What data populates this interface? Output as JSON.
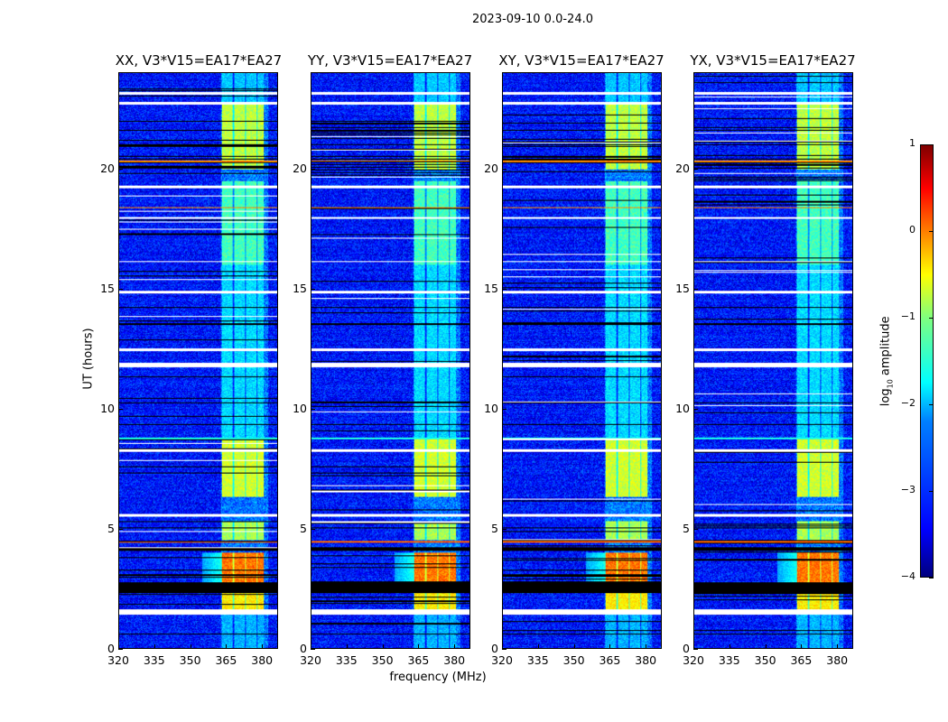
{
  "chart_data": {
    "type": "heatmap",
    "title": "2023-09-10 0.0-24.0",
    "xlabel": "frequency (MHz)",
    "ylabel": "UT (hours)",
    "xlim": [
      320,
      386.7
    ],
    "ylim": [
      0,
      24
    ],
    "xticks": [
      "320",
      "335",
      "350",
      "365",
      "380"
    ],
    "xtick_values": [
      320,
      335,
      350,
      365,
      380
    ],
    "yticks": [
      "0",
      "5",
      "10",
      "15",
      "20"
    ],
    "ytick_values": [
      0,
      5,
      10,
      15,
      20
    ],
    "panels": [
      {
        "title": "XX, V3*V15=EA17*EA27",
        "seed": 1
      },
      {
        "title": "YY, V3*V15=EA17*EA27",
        "seed": 2
      },
      {
        "title": "XY, V3*V15=EA17*EA27",
        "seed": 3
      },
      {
        "title": "YX, V3*V15=EA17*EA27",
        "seed": 4
      }
    ],
    "colorbar": {
      "label_prefix": "log",
      "label_sub": "10",
      "label_suffix": " amplitude",
      "clim": [
        -4,
        1
      ],
      "ticks": [
        "1",
        "0",
        "−1",
        "−2",
        "−3",
        "−4"
      ],
      "tick_values": [
        1,
        0,
        -1,
        -2,
        -3,
        -4
      ],
      "colormap": "jet"
    },
    "background_level": -3.3,
    "rfi_band_mhz": [
      [
        363.5,
        368
      ],
      [
        368.5,
        373
      ],
      [
        373.5,
        378
      ],
      [
        378.5,
        381
      ]
    ],
    "rfi_levels": [
      {
        "ut": [
          0,
          1.4
        ],
        "level": -2.5
      },
      {
        "ut": [
          1.6,
          2.3
        ],
        "level": -0.8
      },
      {
        "ut": [
          2.7,
          4.0
        ],
        "level": -0.2
      },
      {
        "ut": [
          4.5,
          5.3
        ],
        "level": -1.3
      },
      {
        "ut": [
          6.3,
          8.7
        ],
        "level": -1.1
      },
      {
        "ut": [
          8.8,
          16.0
        ],
        "level": -2.3
      },
      {
        "ut": [
          16.0,
          19.5
        ],
        "level": -1.8
      },
      {
        "ut": [
          20.0,
          22.8
        ],
        "level": -1.2
      },
      {
        "ut": [
          22.8,
          24.0
        ],
        "level": -2.4
      }
    ],
    "flagged_white_ut": [
      [
        1.4,
        1.6
      ],
      [
        5.5,
        5.6
      ],
      [
        8.2,
        8.3
      ],
      [
        11.7,
        11.9
      ],
      [
        12.4,
        12.5
      ],
      [
        14.8,
        14.9
      ],
      [
        16.1,
        16.15
      ],
      [
        17.9,
        18.0
      ],
      [
        19.2,
        19.3
      ],
      [
        22.7,
        22.8
      ],
      [
        23.1,
        23.2
      ]
    ],
    "flagged_black_ut": [
      [
        0.55,
        0.6
      ],
      [
        2.3,
        2.75
      ],
      [
        4.05,
        4.2
      ],
      [
        5.0,
        5.05
      ],
      [
        9.3,
        9.35
      ],
      [
        10.2,
        10.25
      ],
      [
        13.5,
        13.55
      ],
      [
        14.2,
        14.25
      ],
      [
        20.4,
        20.45
      ],
      [
        21.0,
        21.05
      ],
      [
        21.6,
        21.65
      ]
    ],
    "bright_lines_ut": [
      {
        "ut": [
          4.38,
          4.48
        ],
        "level": -0.1
      },
      {
        "ut": [
          8.7,
          8.8
        ],
        "level": -2.0
      },
      {
        "ut": [
          18.35,
          18.42
        ],
        "level": -0.3
      },
      {
        "ut": [
          20.3,
          20.36
        ],
        "level": -0.3
      }
    ]
  }
}
